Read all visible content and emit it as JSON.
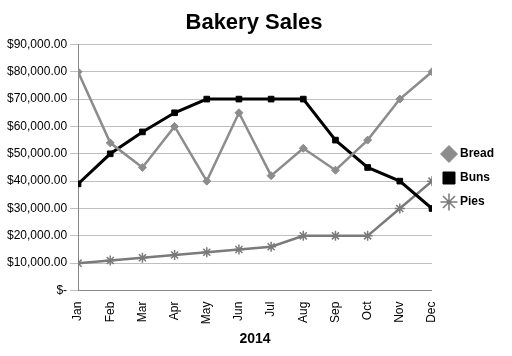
{
  "chart_data": {
    "type": "line",
    "title": "Bakery Sales",
    "x_label": "2014",
    "categories": [
      "Jan",
      "Feb",
      "Mar",
      "Apr",
      "May",
      "Jun",
      "Jul",
      "Aug",
      "Sep",
      "Oct",
      "Nov",
      "Dec"
    ],
    "series": [
      {
        "name": "Bread",
        "color": "#8c8c8c",
        "marker": "diamond",
        "line_style": "solid",
        "values": [
          80000,
          54000,
          45000,
          60000,
          40000,
          65000,
          42000,
          52000,
          44000,
          55000,
          70000,
          80000
        ]
      },
      {
        "name": "Buns",
        "color": "#000000",
        "marker": "square",
        "line_style": "solid",
        "values": [
          39000,
          50000,
          58000,
          65000,
          70000,
          70000,
          70000,
          70000,
          55000,
          45000,
          40000,
          30000
        ]
      },
      {
        "name": "Pies",
        "color": "#7a7a7a",
        "marker": "star",
        "line_style": "solid",
        "values": [
          10000,
          11000,
          12000,
          13000,
          14000,
          15000,
          16000,
          20000,
          20000,
          20000,
          30000,
          40000
        ]
      }
    ],
    "ylim": [
      0,
      90000
    ],
    "yticks": [
      {
        "value": 0,
        "label": "$-"
      },
      {
        "value": 10000,
        "label": "$10,000.00"
      },
      {
        "value": 20000,
        "label": "$20,000.00"
      },
      {
        "value": 30000,
        "label": "$30,000.00"
      },
      {
        "value": 40000,
        "label": "$40,000.00"
      },
      {
        "value": 50000,
        "label": "$50,000.00"
      },
      {
        "value": 60000,
        "label": "$60,000.00"
      },
      {
        "value": 70000,
        "label": "$70,000.00"
      },
      {
        "value": 80000,
        "label": "$80,000.00"
      },
      {
        "value": 90000,
        "label": "$90,000.00"
      }
    ],
    "grid": true,
    "legend": "right"
  }
}
